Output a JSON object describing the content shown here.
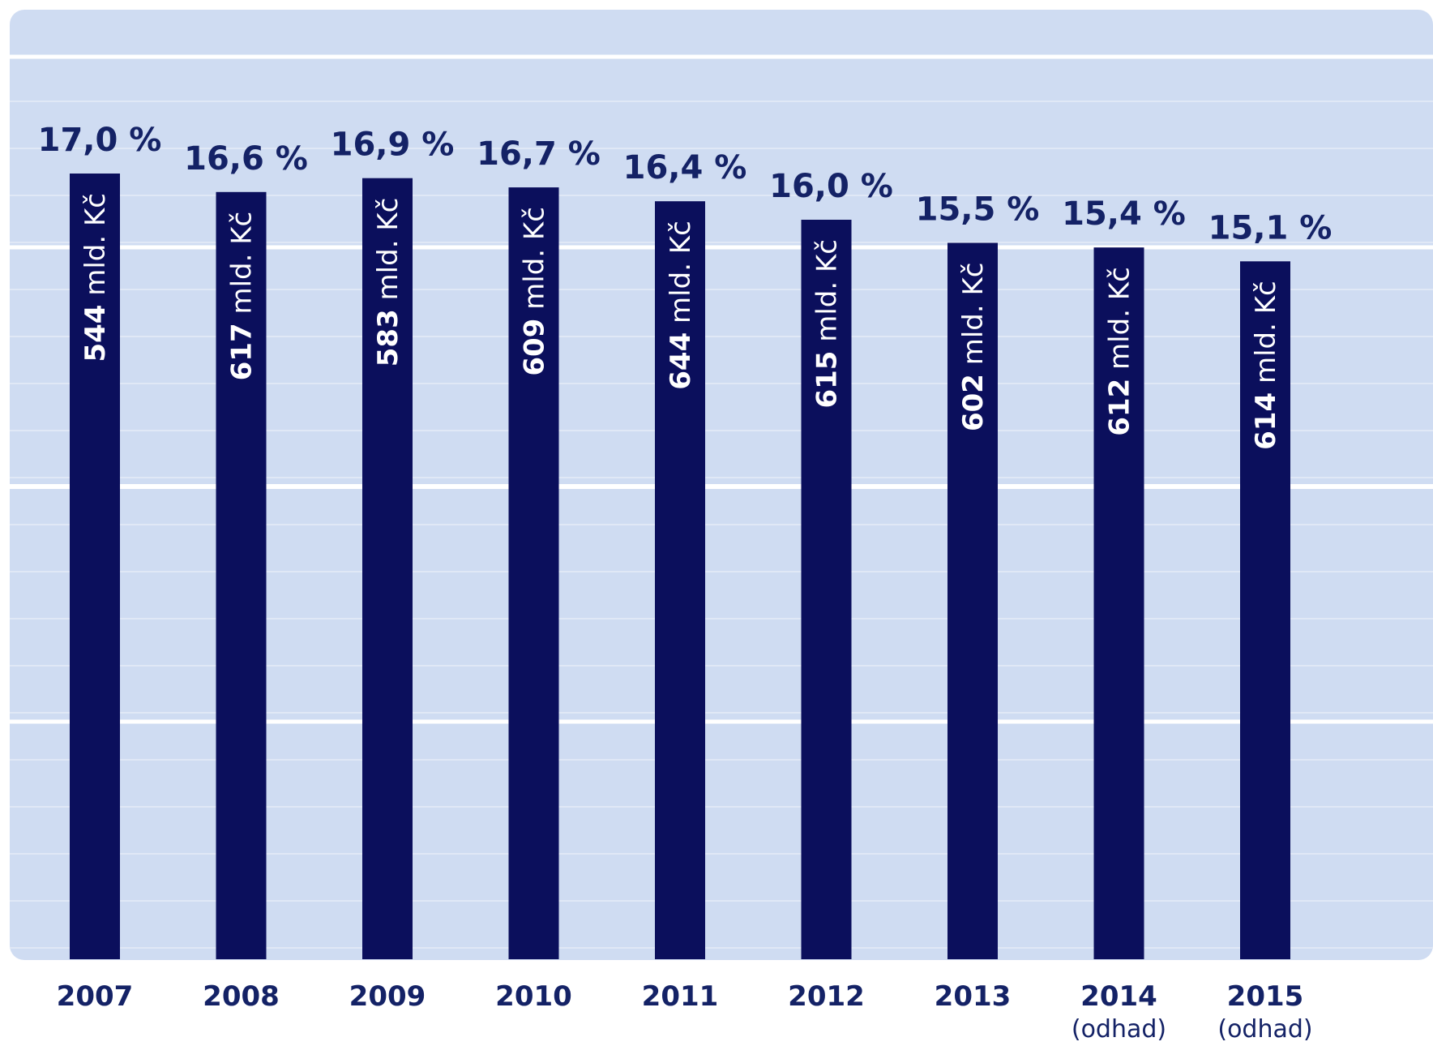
{
  "chart_data": {
    "type": "bar",
    "categories": [
      "2007",
      "2008",
      "2009",
      "2010",
      "2011",
      "2012",
      "2013",
      "2014",
      "2015"
    ],
    "category_notes": [
      "",
      "",
      "",
      "",
      "",
      "",
      "",
      "(odhad)",
      "(odhad)"
    ],
    "values": [
      17.0,
      16.6,
      16.9,
      16.7,
      16.4,
      16.0,
      15.5,
      15.4,
      15.1
    ],
    "value_labels": [
      "17,0 %",
      "16,6 %",
      "16,9 %",
      "16,7 %",
      "16,4 %",
      "16,0 %",
      "15,5 %",
      "15,4 %",
      "15,1 %"
    ],
    "amounts": [
      544,
      617,
      583,
      609,
      644,
      615,
      602,
      612,
      614
    ],
    "amount_unit": "mld. Kč",
    "ylim": [
      0,
      19
    ],
    "grid": true,
    "legend": "none",
    "colors": {
      "bar": "#0b0f5c",
      "background": "#cfdcf2",
      "grid_major": "#ffffff",
      "grid_minor": "#e0e8f6",
      "text": "#142266"
    }
  }
}
